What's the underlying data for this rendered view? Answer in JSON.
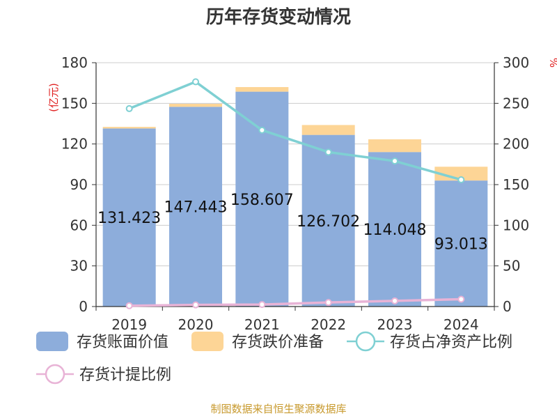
{
  "chart_data": {
    "type": "bar",
    "title": "历年存货变动情况",
    "categories": [
      "2019",
      "2020",
      "2021",
      "2022",
      "2023",
      "2024"
    ],
    "left_axis": {
      "unit": "(亿元)",
      "ticks": [
        "0",
        "30",
        "60",
        "90",
        "120",
        "150",
        "180"
      ],
      "range": [
        0,
        180
      ]
    },
    "right_axis": {
      "unit": "%",
      "ticks": [
        "0",
        "50",
        "100",
        "150",
        "200",
        "250",
        "300"
      ],
      "range": [
        0,
        300
      ]
    },
    "series": [
      {
        "name": "存货账面价值",
        "type": "bar",
        "stack": "inv",
        "axis": "left",
        "color": "#8daddb",
        "values": [
          131.423,
          147.443,
          158.607,
          126.702,
          114.048,
          93.013
        ],
        "labels": [
          "131.423",
          "147.443",
          "158.607",
          "126.702",
          "114.048",
          "93.013"
        ]
      },
      {
        "name": "存货跌价准备",
        "type": "bar",
        "stack": "inv",
        "axis": "left",
        "color": "#fdd596",
        "values": [
          1.2,
          2.2,
          3.4,
          7.3,
          9.4,
          10.2
        ]
      },
      {
        "name": "存货占净资产比例",
        "type": "line",
        "axis": "right",
        "color": "#7fd0d3",
        "values": [
          243.5,
          276.5,
          217,
          190,
          179,
          156
        ]
      },
      {
        "name": "存货计提比例",
        "type": "line",
        "axis": "right",
        "color": "#e8b3d6",
        "values": [
          1,
          2,
          2.5,
          5,
          7,
          9
        ]
      }
    ],
    "grid": true,
    "legend_position": "bottom"
  },
  "source": "制图数据来自恒生聚源数据库"
}
